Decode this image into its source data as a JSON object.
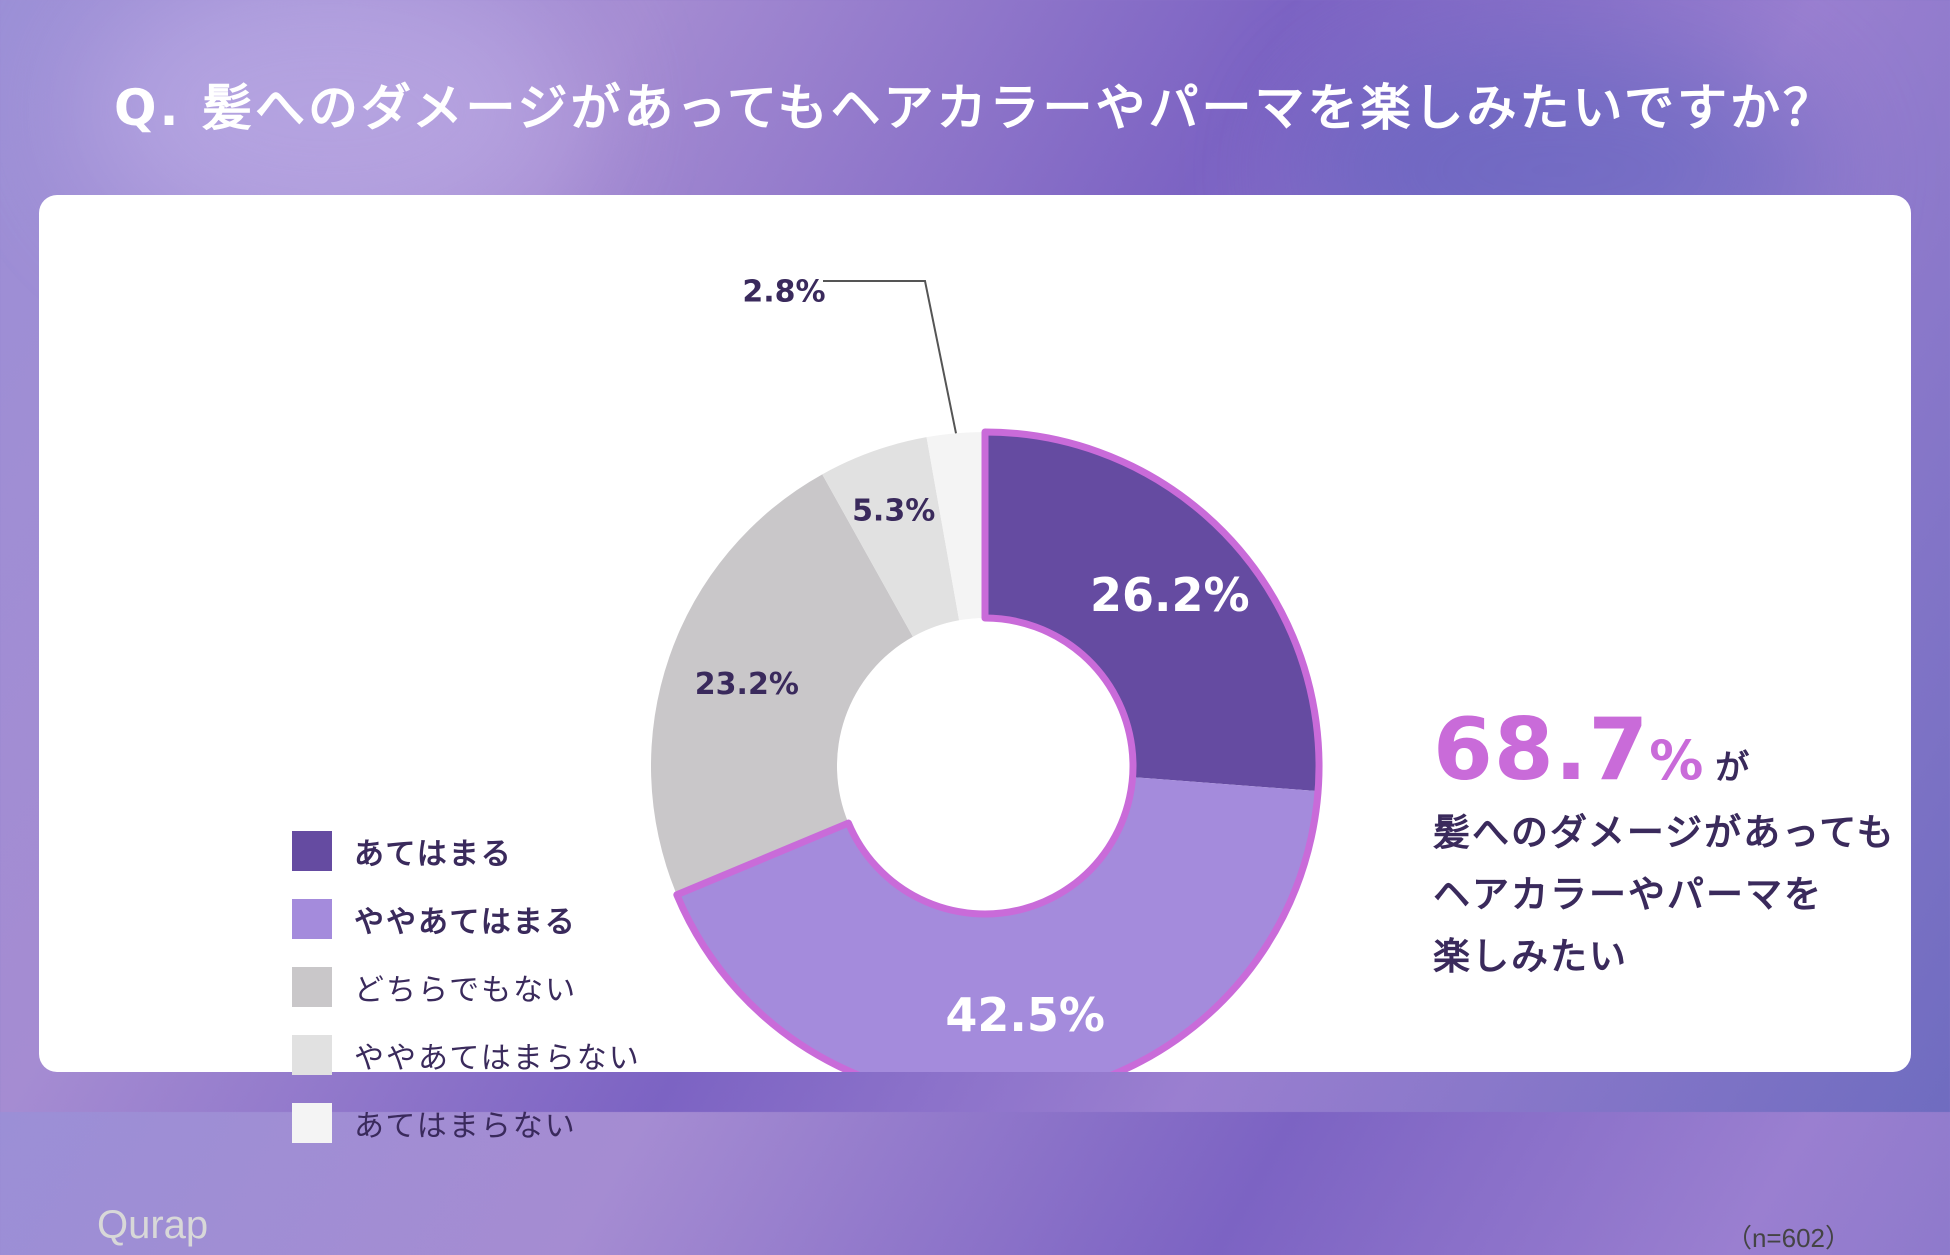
{
  "title": "Q. 髪へのダメージがあってもヘアカラーやパーマを楽しみたいですか？",
  "colors": {
    "accent": "#c96bd9",
    "text": "#3a2a5c",
    "segments": [
      "#654ba1",
      "#a48bdc",
      "#c9c7c9",
      "#e1e1e1",
      "#f4f4f4"
    ]
  },
  "chart_data": {
    "type": "pie",
    "categories": [
      "あてはまる",
      "ややあてはまる",
      "どちらでもない",
      "ややあてはまらない",
      "あてはまらない"
    ],
    "values": [
      26.2,
      42.5,
      23.2,
      5.3,
      2.8
    ],
    "value_labels": [
      "26.2%",
      "42.5%",
      "23.2%",
      "5.3%",
      "2.8%"
    ],
    "highlighted": [
      true,
      true,
      false,
      false,
      false
    ],
    "legend_placement": "left"
  },
  "callout": {
    "number": "68.7",
    "percent": "%",
    "suffix": "が",
    "lines": [
      "髪へのダメージがあっても",
      "ヘアカラーやパーマを",
      "楽しみたい"
    ]
  },
  "logo": "Qurap",
  "sample_size": "（n=602）"
}
